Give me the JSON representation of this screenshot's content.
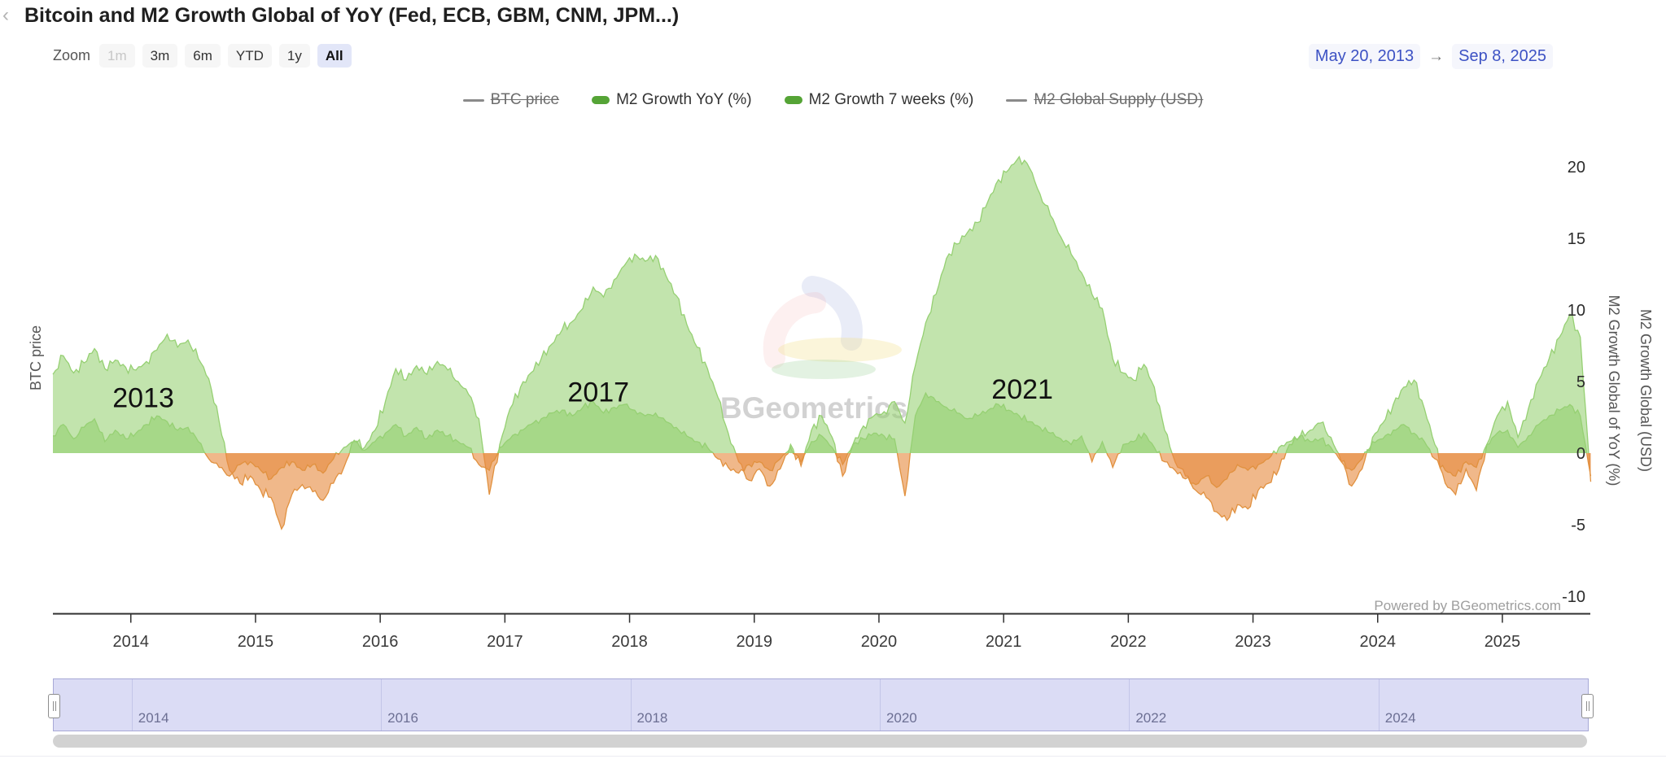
{
  "header": {
    "back_chevron": "‹",
    "title": "Bitcoin and M2 Growth Global of YoY (Fed, ECB, GBM, CNM, JPM...)"
  },
  "toolbar": {
    "zoom_label": "Zoom",
    "buttons": [
      {
        "label": "1m",
        "state": "disabled"
      },
      {
        "label": "3m",
        "state": "normal"
      },
      {
        "label": "6m",
        "state": "normal"
      },
      {
        "label": "YTD",
        "state": "normal"
      },
      {
        "label": "1y",
        "state": "normal"
      },
      {
        "label": "All",
        "state": "active"
      }
    ],
    "range": {
      "from": "May 20, 2013",
      "arrow": "→",
      "to": "Sep 8, 2025"
    }
  },
  "legend": [
    {
      "label": "BTC price",
      "type": "line",
      "enabled": false
    },
    {
      "label": "M2 Growth YoY (%)",
      "type": "area",
      "enabled": true
    },
    {
      "label": "M2 Growth 7 weeks (%)",
      "type": "area",
      "enabled": true
    },
    {
      "label": "M2 Global Supply (USD)",
      "type": "line",
      "enabled": false
    }
  ],
  "watermark": {
    "text": "BGeometrics"
  },
  "powered_by": "Powered by BGeometrics.com",
  "colors": {
    "green_fill": "rgba(144,205,106,0.55)",
    "green_line": "#96d073",
    "orange_fill": "rgba(230,140,66,0.62)",
    "orange_line": "#e1913f",
    "legend_green": "#55a436",
    "accent_blue": "#3d52c4",
    "navigator_band": "#dbdcf5"
  },
  "navigator": {
    "labels": [
      "2014",
      "2016",
      "2018",
      "2020",
      "2022",
      "2024"
    ]
  },
  "chart_data": {
    "type": "area",
    "title": "Bitcoin and M2 Growth Global of YoY (Fed, ECB, GBM, CNM, JPM...)",
    "x_start_decimal_year": 2013.375,
    "x_end_decimal_year": 2025.708,
    "points_per_year": 12,
    "x_axis": {
      "ticks": [
        2014,
        2015,
        2016,
        2017,
        2018,
        2019,
        2020,
        2021,
        2022,
        2023,
        2024,
        2025
      ]
    },
    "y_axis": {
      "ticks": [
        20,
        15,
        10,
        5,
        0,
        -5,
        -10
      ],
      "ylim": [
        -11.3,
        24
      ],
      "title_inner": "M2 Growth Global of YoY (%)",
      "title_outer": "M2 Growth Global (USD)"
    },
    "left_axis_title": "BTC price",
    "grid": false,
    "legend_position": "top-center",
    "annotations": [
      {
        "text": "2013",
        "x": 2014.1,
        "y": 3.2
      },
      {
        "text": "2017",
        "x": 2017.75,
        "y": 3.6
      },
      {
        "text": "2021",
        "x": 2021.15,
        "y": 3.8
      }
    ],
    "series": [
      {
        "name": "BTC price",
        "visible": false,
        "unit": "USD",
        "monthly_values": []
      },
      {
        "name": "M2 Growth YoY (%)",
        "visible": true,
        "unit": "%",
        "monthly_values": [
          5.5,
          6.8,
          5.6,
          6.3,
          7.3,
          5.9,
          6.5,
          6.0,
          5.8,
          6.4,
          7.2,
          8.3,
          7.4,
          7.9,
          6.6,
          5.2,
          2.2,
          -1.2,
          -2.1,
          -1.6,
          -2.6,
          -3.1,
          -5.3,
          -2.9,
          -2.2,
          -2.7,
          -3.3,
          -2.1,
          -1.0,
          0.9,
          0.4,
          1.6,
          3.6,
          5.9,
          5.1,
          6.1,
          5.5,
          6.4,
          5.8,
          5.0,
          4.1,
          2.4,
          -2.9,
          0.6,
          3.1,
          4.6,
          5.6,
          6.6,
          7.6,
          8.6,
          9.2,
          10.1,
          11.6,
          10.9,
          12.1,
          13.1,
          13.9,
          13.4,
          13.8,
          12.4,
          11.0,
          9.0,
          7.4,
          5.9,
          3.9,
          1.4,
          -0.6,
          -1.9,
          -1.1,
          -2.3,
          -1.1,
          0.6,
          -0.9,
          1.6,
          2.6,
          1.1,
          -1.6,
          0.6,
          1.9,
          2.6,
          2.9,
          3.6,
          2.1,
          6.1,
          9.1,
          11.1,
          13.6,
          14.6,
          15.4,
          16.1,
          17.6,
          19.1,
          19.8,
          20.7,
          19.9,
          18.1,
          16.6,
          15.1,
          13.9,
          12.6,
          11.1,
          10.1,
          6.6,
          5.6,
          5.1,
          6.2,
          4.6,
          1.6,
          -0.6,
          -1.6,
          -2.6,
          -3.1,
          -4.1,
          -4.7,
          -3.6,
          -3.9,
          -2.6,
          -2.1,
          -1.1,
          0.6,
          1.1,
          1.6,
          2.1,
          1.1,
          -0.6,
          -2.3,
          -1.1,
          1.1,
          2.1,
          3.4,
          4.6,
          5.1,
          3.1,
          0.6,
          -2.1,
          -2.9,
          -1.1,
          -2.6,
          0.6,
          2.6,
          3.6,
          1.1,
          3.1,
          5.1,
          6.6,
          8.1,
          9.7,
          8.1,
          -2.0
        ]
      },
      {
        "name": "M2 Growth 7 weeks (%)",
        "visible": true,
        "unit": "%",
        "monthly_values": [
          1.2,
          2.0,
          1.0,
          1.8,
          2.4,
          0.8,
          1.6,
          1.0,
          1.4,
          2.0,
          2.6,
          2.2,
          1.6,
          1.8,
          0.8,
          -0.4,
          -1.0,
          -1.6,
          -0.8,
          -0.6,
          -1.2,
          -1.8,
          -1.0,
          -0.6,
          -1.2,
          -0.8,
          -1.4,
          -0.4,
          0.4,
          0.8,
          0.2,
          0.8,
          1.4,
          2.0,
          1.2,
          1.8,
          1.0,
          1.6,
          1.2,
          0.8,
          0.4,
          -0.8,
          -1.2,
          0.4,
          1.0,
          1.6,
          2.0,
          2.4,
          2.8,
          3.0,
          2.6,
          3.2,
          3.6,
          2.8,
          3.2,
          3.4,
          3.0,
          2.6,
          2.8,
          2.2,
          1.8,
          1.2,
          0.8,
          0.4,
          -0.4,
          -1.0,
          -1.4,
          -0.8,
          -0.6,
          -1.2,
          -0.4,
          0.4,
          -0.6,
          0.8,
          1.2,
          0.4,
          -0.8,
          0.6,
          1.0,
          1.4,
          1.2,
          1.0,
          -3.0,
          2.6,
          4.2,
          3.6,
          3.2,
          2.8,
          2.4,
          2.6,
          3.0,
          3.4,
          3.0,
          2.6,
          2.2,
          1.8,
          1.4,
          1.0,
          0.6,
          1.2,
          -0.6,
          0.8,
          -1.0,
          0.6,
          0.8,
          1.4,
          0.4,
          -0.6,
          -1.2,
          -1.8,
          -2.2,
          -1.6,
          -2.4,
          -1.8,
          -0.8,
          -1.2,
          -0.8,
          -0.4,
          0.4,
          0.8,
          1.2,
          0.8,
          1.0,
          0.4,
          -0.6,
          -1.2,
          -0.4,
          0.8,
          1.0,
          1.6,
          2.0,
          1.4,
          0.8,
          -0.4,
          -1.2,
          -1.6,
          -0.6,
          -1.0,
          0.6,
          1.4,
          1.6,
          0.4,
          1.2,
          2.0,
          2.6,
          3.0,
          3.4,
          2.6,
          -1.6
        ]
      },
      {
        "name": "M2 Global Supply (USD)",
        "visible": false,
        "unit": "USD",
        "monthly_values": []
      }
    ],
    "range_shown": {
      "from": "May 20, 2013",
      "to": "Sep 8, 2025"
    }
  }
}
